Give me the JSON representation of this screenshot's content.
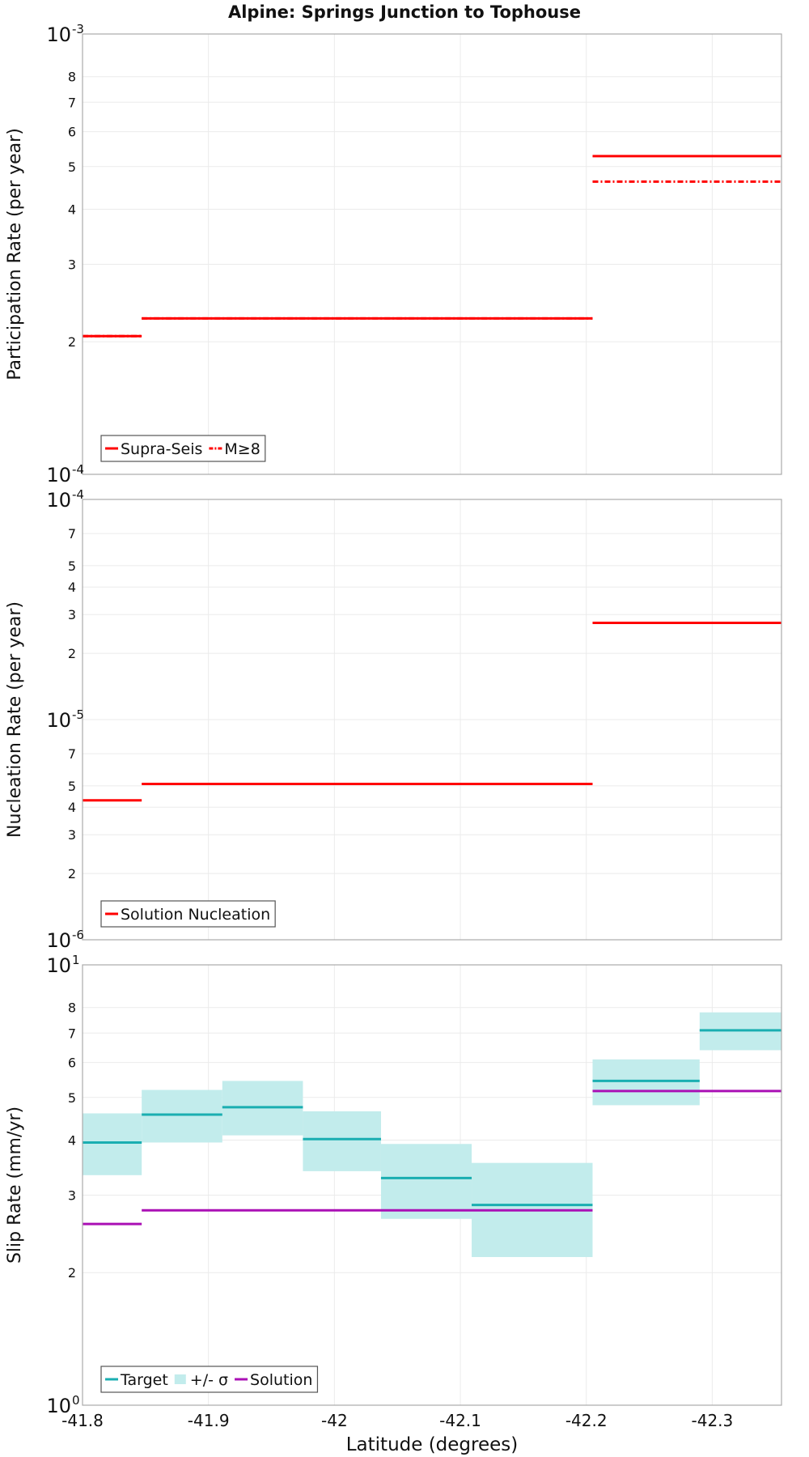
{
  "title": "Alpine: Springs Junction to Tophouse",
  "colors": {
    "red": "#ff0000",
    "teal": "#1aaeb1",
    "teal_band": "#c2ecec",
    "purple": "#aa10b5",
    "grid": "#ebebeb",
    "frame": "#aaaaaa"
  },
  "chart_data": [
    {
      "type": "line",
      "drawstyle": "steps",
      "ylabel": "Participation Rate (per year)",
      "yscale": "log",
      "ylim": [
        0.0001,
        0.001
      ],
      "xlim": [
        -41.8,
        -42.355
      ],
      "y_major_ticks": [
        {
          "value": 0.0001,
          "base": "10",
          "exp": "-4"
        },
        {
          "value": 0.001,
          "base": "10",
          "exp": "-3"
        }
      ],
      "y_minor_ticks": [
        {
          "value": 0.0002,
          "label": "2"
        },
        {
          "value": 0.0003,
          "label": "3"
        },
        {
          "value": 0.0004,
          "label": "4"
        },
        {
          "value": 0.0005,
          "label": "5"
        },
        {
          "value": 0.0006,
          "label": "6"
        },
        {
          "value": 0.0007,
          "label": "7"
        },
        {
          "value": 0.0008,
          "label": "8"
        }
      ],
      "series": [
        {
          "name": "Supra-Seis",
          "style": "solid",
          "segments": [
            {
              "x0": -41.8,
              "x1": -41.847,
              "y": 0.000206
            },
            {
              "x0": -41.847,
              "x1": -42.205,
              "y": 0.000226
            },
            {
              "x0": -42.205,
              "x1": -42.355,
              "y": 0.000528
            }
          ]
        },
        {
          "name": "M≥8",
          "style": "dashdot",
          "segments": [
            {
              "x0": -41.8,
              "x1": -41.847,
              "y": 0.000206
            },
            {
              "x0": -41.847,
              "x1": -42.205,
              "y": 0.000226
            },
            {
              "x0": -42.205,
              "x1": -42.355,
              "y": 0.000462
            }
          ]
        }
      ],
      "legend": {
        "position": "bottom-left",
        "entries": [
          "Supra-Seis",
          "M≥8"
        ]
      }
    },
    {
      "type": "line",
      "drawstyle": "steps",
      "ylabel": "Nucleation Rate (per year)",
      "yscale": "log",
      "ylim": [
        1e-06,
        0.0001
      ],
      "xlim": [
        -41.8,
        -42.355
      ],
      "y_major_ticks": [
        {
          "value": 1e-06,
          "base": "10",
          "exp": "-6"
        },
        {
          "value": 1e-05,
          "base": "10",
          "exp": "-5"
        },
        {
          "value": 0.0001,
          "base": "10",
          "exp": "-4"
        }
      ],
      "y_minor_ticks": [
        {
          "value": 2e-06,
          "label": "2"
        },
        {
          "value": 3e-06,
          "label": "3"
        },
        {
          "value": 4e-06,
          "label": "4"
        },
        {
          "value": 5e-06,
          "label": "5"
        },
        {
          "value": 7e-06,
          "label": "7"
        },
        {
          "value": 2e-05,
          "label": "2"
        },
        {
          "value": 3e-05,
          "label": "3"
        },
        {
          "value": 4e-05,
          "label": "4"
        },
        {
          "value": 5e-05,
          "label": "5"
        },
        {
          "value": 7e-05,
          "label": "7"
        }
      ],
      "series": [
        {
          "name": "Solution Nucleation",
          "style": "solid",
          "segments": [
            {
              "x0": -41.8,
              "x1": -41.847,
              "y": 4.3e-06
            },
            {
              "x0": -41.847,
              "x1": -42.205,
              "y": 5.1e-06
            },
            {
              "x0": -42.205,
              "x1": -42.355,
              "y": 2.75e-05
            }
          ]
        }
      ],
      "legend": {
        "position": "bottom-left",
        "entries": [
          "Solution Nucleation"
        ]
      }
    },
    {
      "type": "line",
      "drawstyle": "steps",
      "ylabel": "Slip Rate (mm/yr)",
      "xlabel": "Latitude (degrees)",
      "yscale": "log",
      "ylim": [
        1,
        10
      ],
      "xlim": [
        -41.8,
        -42.355
      ],
      "x_ticks": [
        {
          "value": -41.8,
          "label": "-41.8"
        },
        {
          "value": -41.9,
          "label": "-41.9"
        },
        {
          "value": -42.0,
          "label": "-42"
        },
        {
          "value": -42.1,
          "label": "-42.1"
        },
        {
          "value": -42.2,
          "label": "-42.2"
        },
        {
          "value": -42.3,
          "label": "-42.3"
        }
      ],
      "y_major_ticks": [
        {
          "value": 1,
          "base": "10",
          "exp": "0"
        },
        {
          "value": 10,
          "base": "10",
          "exp": "1"
        }
      ],
      "y_minor_ticks": [
        {
          "value": 2,
          "label": "2"
        },
        {
          "value": 3,
          "label": "3"
        },
        {
          "value": 4,
          "label": "4"
        },
        {
          "value": 5,
          "label": "5"
        },
        {
          "value": 6,
          "label": "6"
        },
        {
          "value": 7,
          "label": "7"
        },
        {
          "value": 8,
          "label": "8"
        }
      ],
      "series": [
        {
          "name": "Target",
          "style": "solid",
          "segments": [
            {
              "x0": -41.8,
              "x1": -41.847,
              "y": 3.95,
              "lo": 3.33,
              "hi": 4.6
            },
            {
              "x0": -41.847,
              "x1": -41.911,
              "y": 4.57,
              "lo": 3.95,
              "hi": 5.2
            },
            {
              "x0": -41.911,
              "x1": -41.975,
              "y": 4.75,
              "lo": 4.1,
              "hi": 5.45
            },
            {
              "x0": -41.975,
              "x1": -42.037,
              "y": 4.02,
              "lo": 3.4,
              "hi": 4.65
            },
            {
              "x0": -42.037,
              "x1": -42.109,
              "y": 3.28,
              "lo": 2.65,
              "hi": 3.92
            },
            {
              "x0": -42.109,
              "x1": -42.205,
              "y": 2.85,
              "lo": 2.17,
              "hi": 3.55
            },
            {
              "x0": -42.205,
              "x1": -42.29,
              "y": 5.45,
              "lo": 4.8,
              "hi": 6.1
            },
            {
              "x0": -42.29,
              "x1": -42.355,
              "y": 7.1,
              "lo": 6.4,
              "hi": 7.8
            }
          ]
        },
        {
          "name": "Solution",
          "style": "solid",
          "segments": [
            {
              "x0": -41.8,
              "x1": -41.847,
              "y": 2.58
            },
            {
              "x0": -41.847,
              "x1": -42.205,
              "y": 2.77
            },
            {
              "x0": -42.205,
              "x1": -42.355,
              "y": 5.17
            }
          ]
        }
      ],
      "legend": {
        "position": "bottom-left",
        "entries": [
          "Target",
          "+/- σ",
          "Solution"
        ]
      }
    }
  ]
}
